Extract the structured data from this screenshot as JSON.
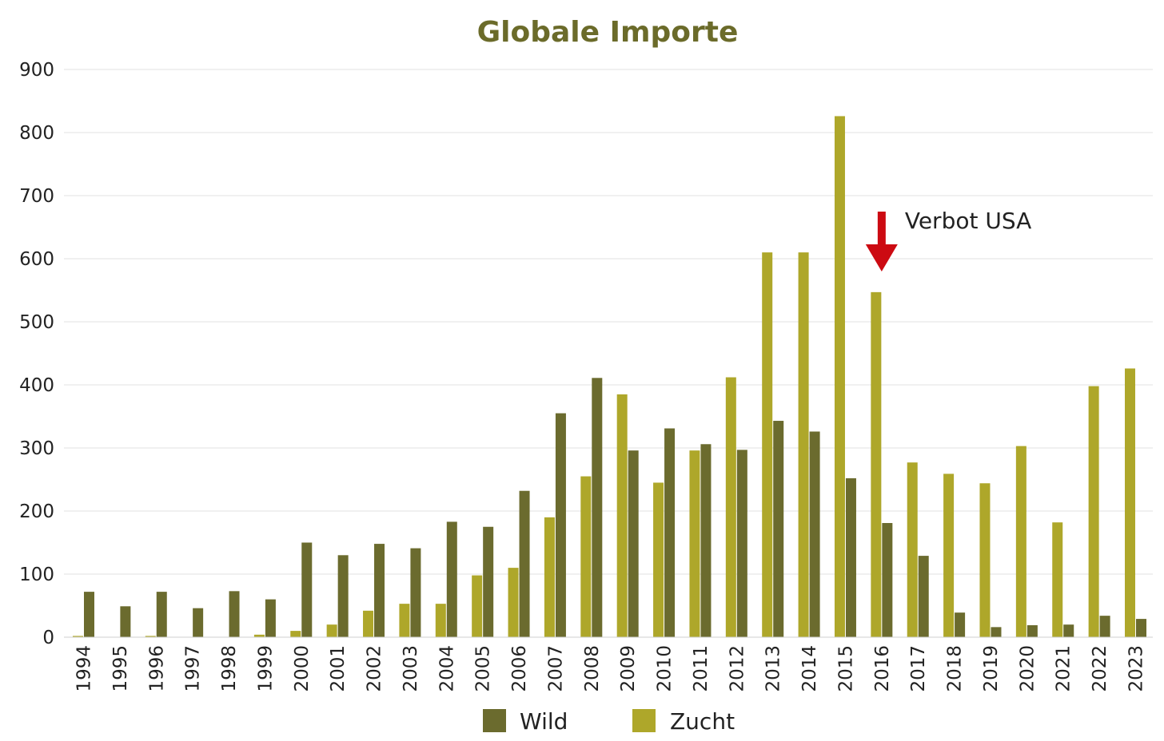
{
  "chart_data": {
    "type": "bar",
    "title": "Globale Importe",
    "xlabel": "",
    "ylabel": "",
    "ylim": [
      0,
      900
    ],
    "yticks": [
      0,
      100,
      200,
      300,
      400,
      500,
      600,
      700,
      800,
      900
    ],
    "grid": true,
    "legend_position": "bottom",
    "categories": [
      "1994",
      "1995",
      "1996",
      "1997",
      "1998",
      "1999",
      "2000",
      "2001",
      "2002",
      "2003",
      "2004",
      "2005",
      "2006",
      "2007",
      "2008",
      "2009",
      "2010",
      "2011",
      "2012",
      "2013",
      "2014",
      "2015",
      "2016",
      "2017",
      "2018",
      "2019",
      "2020",
      "2021",
      "2022",
      "2023"
    ],
    "series": [
      {
        "name": "Zucht",
        "color": "#aea72a",
        "values": [
          2,
          0,
          2,
          0,
          0,
          4,
          10,
          20,
          42,
          53,
          53,
          98,
          110,
          190,
          255,
          385,
          245,
          296,
          412,
          610,
          610,
          826,
          547,
          277,
          259,
          244,
          303,
          182,
          398,
          426
        ]
      },
      {
        "name": "Wild",
        "color": "#6b6b2e",
        "values": [
          72,
          49,
          72,
          46,
          73,
          60,
          150,
          130,
          148,
          141,
          183,
          175,
          232,
          355,
          411,
          296,
          331,
          306,
          297,
          343,
          326,
          252,
          181,
          129,
          39,
          16,
          19,
          20,
          34,
          29
        ]
      }
    ],
    "annotations": [
      {
        "text": "Verbot USA",
        "category": "2016",
        "arrow_color": "#cc0a12"
      }
    ]
  }
}
